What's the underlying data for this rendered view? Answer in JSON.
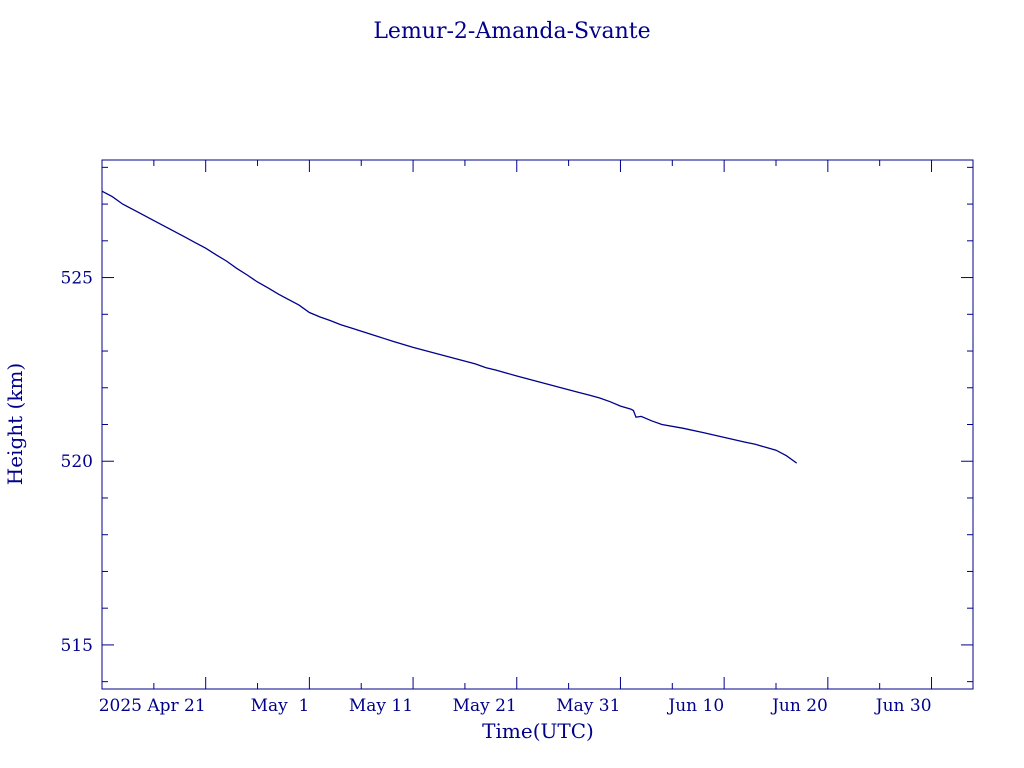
{
  "chart_data": {
    "type": "line",
    "title": "Lemur-2-Amanda-Svante",
    "xlabel": "Time(UTC)",
    "ylabel": "Height (km)",
    "x_ticks": [
      {
        "date": "2025-04-21",
        "label": "2025 Apr 21"
      },
      {
        "date": "2025-05-01",
        "label": "May  1"
      },
      {
        "date": "2025-05-11",
        "label": "May 11"
      },
      {
        "date": "2025-05-21",
        "label": "May 21"
      },
      {
        "date": "2025-05-31",
        "label": "May 31"
      },
      {
        "date": "2025-06-10",
        "label": "Jun 10"
      },
      {
        "date": "2025-06-20",
        "label": "Jun 20"
      },
      {
        "date": "2025-06-30",
        "label": "Jun 30"
      }
    ],
    "xlim": [
      "2025-04-11",
      "2025-07-04"
    ],
    "y_ticks": [
      515,
      520,
      525
    ],
    "ylim": [
      513.8,
      528.2
    ],
    "grid": false,
    "color": "#00008b",
    "series": [
      {
        "x": [
          "2025-04-11",
          "2025-04-12",
          "2025-04-13",
          "2025-04-14",
          "2025-04-15",
          "2025-04-16",
          "2025-04-17",
          "2025-04-18",
          "2025-04-19",
          "2025-04-20",
          "2025-04-21",
          "2025-04-22",
          "2025-04-23",
          "2025-04-24",
          "2025-04-25",
          "2025-04-26",
          "2025-04-27",
          "2025-04-28",
          "2025-04-29",
          "2025-04-30",
          "2025-05-01",
          "2025-05-02",
          "2025-05-03",
          "2025-05-04",
          "2025-05-05",
          "2025-05-07",
          "2025-05-09",
          "2025-05-11",
          "2025-05-13",
          "2025-05-15",
          "2025-05-17",
          "2025-05-18",
          "2025-05-19",
          "2025-05-21",
          "2025-05-23",
          "2025-05-25",
          "2025-05-27",
          "2025-05-28",
          "2025-05-29",
          "2025-05-30",
          "2025-05-31",
          "2025-06-01",
          "2025-06-01T06",
          "2025-06-01T12",
          "2025-06-02",
          "2025-06-03",
          "2025-06-04",
          "2025-06-06",
          "2025-06-08",
          "2025-06-10",
          "2025-06-12",
          "2025-06-13",
          "2025-06-14",
          "2025-06-15",
          "2025-06-16",
          "2025-06-17"
        ],
        "y": [
          527.35,
          527.2,
          527.0,
          526.85,
          526.7,
          526.55,
          526.4,
          526.25,
          526.1,
          525.95,
          525.8,
          525.62,
          525.45,
          525.25,
          525.07,
          524.88,
          524.72,
          524.55,
          524.4,
          524.25,
          524.05,
          523.93,
          523.83,
          523.72,
          523.63,
          523.45,
          523.27,
          523.1,
          522.95,
          522.8,
          522.65,
          522.55,
          522.48,
          522.32,
          522.17,
          522.02,
          521.87,
          521.8,
          521.72,
          521.62,
          521.5,
          521.42,
          521.38,
          521.2,
          521.22,
          521.1,
          521.0,
          520.9,
          520.78,
          520.65,
          520.52,
          520.46,
          520.38,
          520.3,
          520.15,
          519.95
        ]
      }
    ]
  }
}
